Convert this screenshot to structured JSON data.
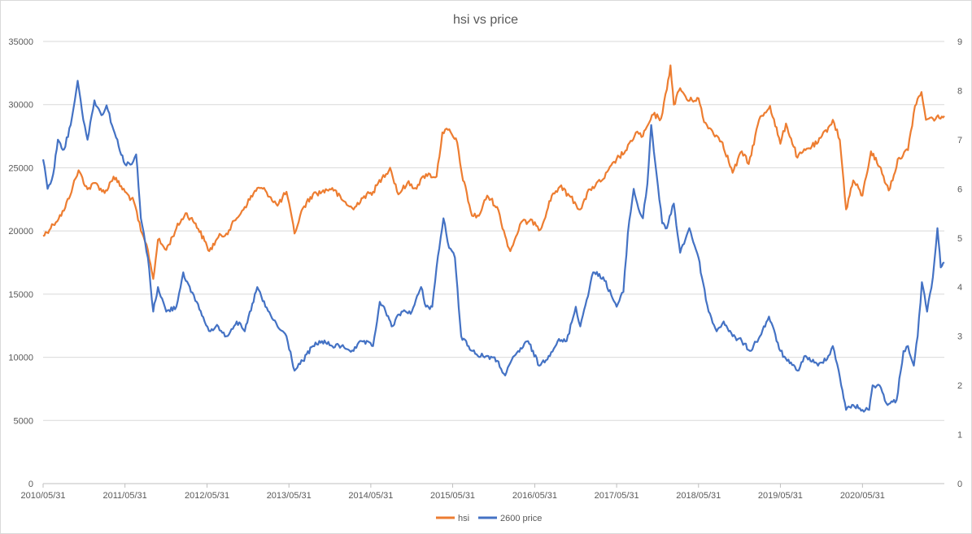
{
  "chart_data": {
    "type": "line",
    "title": "hsi vs price",
    "x_ticks": [
      "2010/05/31",
      "2011/05/31",
      "2012/05/31",
      "2013/05/31",
      "2014/05/31",
      "2015/05/31",
      "2016/05/31",
      "2017/05/31",
      "2018/05/31",
      "2019/05/31",
      "2020/05/31"
    ],
    "x_range": [
      "2010/05/31",
      "2021/05/31"
    ],
    "y_left": {
      "range": [
        0,
        35000
      ],
      "ticks": [
        "0",
        "5000",
        "10000",
        "15000",
        "20000",
        "25000",
        "30000",
        "35000"
      ]
    },
    "y_right": {
      "range": [
        0,
        9
      ],
      "ticks": [
        "0",
        "1",
        "2",
        "3",
        "4",
        "5",
        "6",
        "7",
        "8",
        "9"
      ]
    },
    "grid": true,
    "legend_position": "bottom",
    "series": [
      {
        "name": "hsi",
        "axis": "left",
        "color": "#ED7D31",
        "points": [
          [
            "2010/05/31",
            19600
          ],
          [
            "2010/07/15",
            20500
          ],
          [
            "2010/09/01",
            21600
          ],
          [
            "2010/10/10",
            23500
          ],
          [
            "2010/11/05",
            24800
          ],
          [
            "2010/12/15",
            23300
          ],
          [
            "2011/01/20",
            23800
          ],
          [
            "2011/03/01",
            23000
          ],
          [
            "2011/04/10",
            24300
          ],
          [
            "2011/05/31",
            23100
          ],
          [
            "2011/07/10",
            22300
          ],
          [
            "2011/08/10",
            20000
          ],
          [
            "2011/09/10",
            18500
          ],
          [
            "2011/10/04",
            16200
          ],
          [
            "2011/10/25",
            19300
          ],
          [
            "2011/12/01",
            18500
          ],
          [
            "2012/01/15",
            20200
          ],
          [
            "2012/02/25",
            21400
          ],
          [
            "2012/04/10",
            20600
          ],
          [
            "2012/05/20",
            19200
          ],
          [
            "2012/06/10",
            18400
          ],
          [
            "2012/07/20",
            19500
          ],
          [
            "2012/08/25",
            19800
          ],
          [
            "2012/10/10",
            21000
          ],
          [
            "2012/11/15",
            21900
          ],
          [
            "2013/01/10",
            23400
          ],
          [
            "2013/02/15",
            23200
          ],
          [
            "2013/04/10",
            22000
          ],
          [
            "2013/05/20",
            23100
          ],
          [
            "2013/06/25",
            19800
          ],
          [
            "2013/08/01",
            21800
          ],
          [
            "2013/09/15",
            22900
          ],
          [
            "2013/10/25",
            23100
          ],
          [
            "2013/12/10",
            23400
          ],
          [
            "2014/01/20",
            22500
          ],
          [
            "2014/03/15",
            21700
          ],
          [
            "2014/04/20",
            22600
          ],
          [
            "2014/06/10",
            23100
          ],
          [
            "2014/07/20",
            24200
          ],
          [
            "2014/08/25",
            25000
          ],
          [
            "2014/10/01",
            22900
          ],
          [
            "2014/11/10",
            23800
          ],
          [
            "2014/12/15",
            23400
          ],
          [
            "2015/02/01",
            24500
          ],
          [
            "2015/03/20",
            24300
          ],
          [
            "2015/04/15",
            27800
          ],
          [
            "2015/05/10",
            28000
          ],
          [
            "2015/06/20",
            27000
          ],
          [
            "2015/07/10",
            24600
          ],
          [
            "2015/08/25",
            21200
          ],
          [
            "2015/09/25",
            21200
          ],
          [
            "2015/11/01",
            22800
          ],
          [
            "2015/12/15",
            21900
          ],
          [
            "2016/01/20",
            19600
          ],
          [
            "2016/02/12",
            18400
          ],
          [
            "2016/04/01",
            20700
          ],
          [
            "2016/05/31",
            20700
          ],
          [
            "2016/06/25",
            20100
          ],
          [
            "2016/08/15",
            22800
          ],
          [
            "2016/09/20",
            23500
          ],
          [
            "2016/11/01",
            22800
          ],
          [
            "2016/12/20",
            21700
          ],
          [
            "2017/02/01",
            23300
          ],
          [
            "2017/04/01",
            24100
          ],
          [
            "2017/05/31",
            25700
          ],
          [
            "2017/07/15",
            26400
          ],
          [
            "2017/08/25",
            27800
          ],
          [
            "2017/09/25",
            27500
          ],
          [
            "2017/11/10",
            29200
          ],
          [
            "2017/12/15",
            28900
          ],
          [
            "2018/01/10",
            31200
          ],
          [
            "2018/01/26",
            33100
          ],
          [
            "2018/02/10",
            30000
          ],
          [
            "2018/03/10",
            31300
          ],
          [
            "2018/04/15",
            30300
          ],
          [
            "2018/05/31",
            30500
          ],
          [
            "2018/06/25",
            28600
          ],
          [
            "2018/08/01",
            27900
          ],
          [
            "2018/09/15",
            27000
          ],
          [
            "2018/10/30",
            24600
          ],
          [
            "2018/12/10",
            26300
          ],
          [
            "2019/01/10",
            25300
          ],
          [
            "2019/02/25",
            28800
          ],
          [
            "2019/04/15",
            29900
          ],
          [
            "2019/05/31",
            26900
          ],
          [
            "2019/06/25",
            28500
          ],
          [
            "2019/08/15",
            25800
          ],
          [
            "2019/09/20",
            26400
          ],
          [
            "2019/11/15",
            27000
          ],
          [
            "2019/12/31",
            28200
          ],
          [
            "2020/01/20",
            28800
          ],
          [
            "2020/02/20",
            27200
          ],
          [
            "2020/03/19",
            21700
          ],
          [
            "2020/04/20",
            24000
          ],
          [
            "2020/05/31",
            22800
          ],
          [
            "2020/07/08",
            26300
          ],
          [
            "2020/08/15",
            25100
          ],
          [
            "2020/09/25",
            23200
          ],
          [
            "2020/11/10",
            25800
          ],
          [
            "2020/12/20",
            26400
          ],
          [
            "2021/01/20",
            29900
          ],
          [
            "2021/02/18",
            31000
          ],
          [
            "2021/03/10",
            28800
          ],
          [
            "2021/04/10",
            28900
          ],
          [
            "2021/05/31",
            29100
          ]
        ]
      },
      {
        "name": "2600 price",
        "axis": "right",
        "color": "#4472C4",
        "points": [
          [
            "2010/05/31",
            6.6
          ],
          [
            "2010/06/20",
            6.0
          ],
          [
            "2010/07/15",
            6.3
          ],
          [
            "2010/08/05",
            7.0
          ],
          [
            "2010/09/01",
            6.8
          ],
          [
            "2010/10/01",
            7.3
          ],
          [
            "2010/11/01",
            8.2
          ],
          [
            "2010/11/20",
            7.6
          ],
          [
            "2010/12/15",
            7.0
          ],
          [
            "2011/01/15",
            7.8
          ],
          [
            "2011/02/15",
            7.5
          ],
          [
            "2011/03/10",
            7.7
          ],
          [
            "2011/04/10",
            7.2
          ],
          [
            "2011/05/31",
            6.5
          ],
          [
            "2011/06/30",
            6.5
          ],
          [
            "2011/07/20",
            6.7
          ],
          [
            "2011/08/10",
            5.4
          ],
          [
            "2011/09/10",
            4.6
          ],
          [
            "2011/10/04",
            3.5
          ],
          [
            "2011/10/25",
            4.0
          ],
          [
            "2011/12/01",
            3.5
          ],
          [
            "2012/01/15",
            3.6
          ],
          [
            "2012/02/15",
            4.3
          ],
          [
            "2012/03/20",
            3.9
          ],
          [
            "2012/04/15",
            3.7
          ],
          [
            "2012/05/20",
            3.3
          ],
          [
            "2012/06/15",
            3.1
          ],
          [
            "2012/07/20",
            3.2
          ],
          [
            "2012/08/25",
            3.0
          ],
          [
            "2012/10/10",
            3.3
          ],
          [
            "2012/11/15",
            3.1
          ],
          [
            "2013/01/10",
            4.0
          ],
          [
            "2013/02/15",
            3.6
          ],
          [
            "2013/04/10",
            3.2
          ],
          [
            "2013/05/20",
            3.0
          ],
          [
            "2013/06/25",
            2.3
          ],
          [
            "2013/08/01",
            2.5
          ],
          [
            "2013/09/15",
            2.8
          ],
          [
            "2013/10/25",
            2.9
          ],
          [
            "2013/12/10",
            2.8
          ],
          [
            "2014/01/20",
            2.8
          ],
          [
            "2014/03/15",
            2.7
          ],
          [
            "2014/04/20",
            2.9
          ],
          [
            "2014/06/10",
            2.8
          ],
          [
            "2014/07/10",
            3.7
          ],
          [
            "2014/08/05",
            3.5
          ],
          [
            "2014/09/01",
            3.2
          ],
          [
            "2014/10/15",
            3.5
          ],
          [
            "2014/11/30",
            3.5
          ],
          [
            "2015/01/10",
            4.0
          ],
          [
            "2015/02/01",
            3.6
          ],
          [
            "2015/03/01",
            3.6
          ],
          [
            "2015/03/20",
            4.4
          ],
          [
            "2015/04/20",
            5.4
          ],
          [
            "2015/05/15",
            4.8
          ],
          [
            "2015/06/10",
            4.6
          ],
          [
            "2015/07/08",
            3.0
          ],
          [
            "2015/08/10",
            2.8
          ],
          [
            "2015/09/20",
            2.6
          ],
          [
            "2015/11/01",
            2.6
          ],
          [
            "2015/12/15",
            2.5
          ],
          [
            "2016/01/20",
            2.2
          ],
          [
            "2016/03/01",
            2.6
          ],
          [
            "2016/05/01",
            2.9
          ],
          [
            "2016/06/20",
            2.4
          ],
          [
            "2016/08/01",
            2.6
          ],
          [
            "2016/09/10",
            2.9
          ],
          [
            "2016/10/20",
            2.9
          ],
          [
            "2016/11/30",
            3.6
          ],
          [
            "2016/12/20",
            3.2
          ],
          [
            "2017/02/15",
            4.3
          ],
          [
            "2017/04/01",
            4.2
          ],
          [
            "2017/05/31",
            3.6
          ],
          [
            "2017/06/30",
            3.9
          ],
          [
            "2017/07/20",
            5.1
          ],
          [
            "2017/08/15",
            6.0
          ],
          [
            "2017/09/05",
            5.6
          ],
          [
            "2017/09/25",
            5.4
          ],
          [
            "2017/10/15",
            6.1
          ],
          [
            "2017/11/01",
            7.3
          ],
          [
            "2017/11/25",
            6.3
          ],
          [
            "2017/12/20",
            5.3
          ],
          [
            "2018/01/10",
            5.2
          ],
          [
            "2018/02/10",
            5.7
          ],
          [
            "2018/03/10",
            4.7
          ],
          [
            "2018/04/20",
            5.2
          ],
          [
            "2018/05/31",
            4.6
          ],
          [
            "2018/06/15",
            4.2
          ],
          [
            "2018/07/15",
            3.5
          ],
          [
            "2018/08/20",
            3.1
          ],
          [
            "2018/09/20",
            3.3
          ],
          [
            "2018/10/30",
            3.0
          ],
          [
            "2018/12/10",
            2.9
          ],
          [
            "2019/01/15",
            2.7
          ],
          [
            "2019/03/01",
            3.0
          ],
          [
            "2019/04/10",
            3.4
          ],
          [
            "2019/05/31",
            2.7
          ],
          [
            "2019/06/30",
            2.5
          ],
          [
            "2019/08/15",
            2.3
          ],
          [
            "2019/09/20",
            2.6
          ],
          [
            "2019/11/15",
            2.4
          ],
          [
            "2019/12/31",
            2.6
          ],
          [
            "2020/01/20",
            2.8
          ],
          [
            "2020/02/15",
            2.3
          ],
          [
            "2020/03/19",
            1.5
          ],
          [
            "2020/04/20",
            1.6
          ],
          [
            "2020/05/31",
            1.5
          ],
          [
            "2020/06/30",
            1.5
          ],
          [
            "2020/07/15",
            2.0
          ],
          [
            "2020/08/15",
            2.0
          ],
          [
            "2020/09/20",
            1.6
          ],
          [
            "2020/10/30",
            1.7
          ],
          [
            "2020/11/30",
            2.7
          ],
          [
            "2020/12/20",
            2.8
          ],
          [
            "2021/01/15",
            2.4
          ],
          [
            "2021/02/01",
            3.0
          ],
          [
            "2021/02/20",
            4.1
          ],
          [
            "2021/03/15",
            3.5
          ],
          [
            "2021/04/10",
            4.2
          ],
          [
            "2021/04/30",
            5.2
          ],
          [
            "2021/05/15",
            4.4
          ],
          [
            "2021/05/31",
            4.5
          ]
        ]
      }
    ]
  }
}
